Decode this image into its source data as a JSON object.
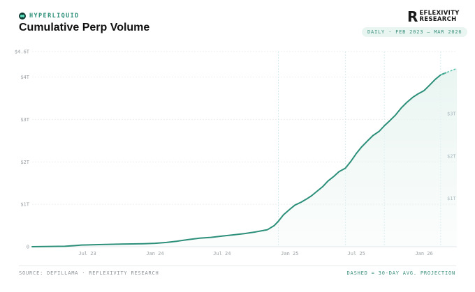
{
  "header": {
    "brand": "HYPERLIQUID",
    "title": "Cumulative Perp Volume",
    "badge": "DAILY · FEB 2023 – MAR 2026"
  },
  "logo": {
    "mark": "R",
    "line1": "EFLEXIVITY",
    "line2": "RESEARCH"
  },
  "footer": {
    "source": "SOURCE: DEFILLAMA · REFLEXIVITY RESEARCH",
    "note": "DASHED = 30-DAY AVG. PROJECTION"
  },
  "colors": {
    "line": "#2c8f79",
    "fill": "#e7f4f0",
    "projection": "#5fc4ae",
    "brand": "#2c8f79"
  },
  "chart_data": {
    "type": "area",
    "title": "Cumulative Perp Volume",
    "xlabel": "",
    "ylabel": "",
    "unit": "USD",
    "x_range": [
      "2023-02-01",
      "2026-03-31"
    ],
    "ylim": [
      0,
      4.6
    ],
    "y_ticks": [
      {
        "value": 0,
        "label": "0"
      },
      {
        "value": 1,
        "label": "$1T"
      },
      {
        "value": 2,
        "label": "$2T"
      },
      {
        "value": 3,
        "label": "$3T"
      },
      {
        "value": 4,
        "label": "$4T"
      },
      {
        "value": 4.6,
        "label": "$4.6T"
      }
    ],
    "x_ticks": [
      {
        "date": "2023-07-01",
        "label": "Jul 23"
      },
      {
        "date": "2024-01-01",
        "label": "Jan 24"
      },
      {
        "date": "2024-07-01",
        "label": "Jul 24"
      },
      {
        "date": "2025-01-01",
        "label": "Jan 25"
      },
      {
        "date": "2025-07-01",
        "label": "Jul 25"
      },
      {
        "date": "2026-01-01",
        "label": "Jan 26"
      }
    ],
    "inner_labels": [
      {
        "value": 3,
        "label": "$3T"
      },
      {
        "value": 2,
        "label": "$2T"
      },
      {
        "value": 1,
        "label": "$1T"
      }
    ],
    "vertical_markers": [
      "2024-12-01",
      "2025-06-01",
      "2025-09-15",
      "2026-02-15"
    ],
    "grid": true,
    "legend": "none",
    "series": [
      {
        "style": "solid",
        "points": [
          [
            "2023-02-01",
            0.0
          ],
          [
            "2023-05-01",
            0.01
          ],
          [
            "2023-06-01",
            0.03
          ],
          [
            "2023-06-15",
            0.04
          ],
          [
            "2023-08-01",
            0.05
          ],
          [
            "2023-10-01",
            0.06
          ],
          [
            "2023-12-01",
            0.07
          ],
          [
            "2024-01-01",
            0.08
          ],
          [
            "2024-02-01",
            0.1
          ],
          [
            "2024-03-01",
            0.13
          ],
          [
            "2024-04-01",
            0.17
          ],
          [
            "2024-05-01",
            0.2
          ],
          [
            "2024-06-01",
            0.22
          ],
          [
            "2024-07-01",
            0.25
          ],
          [
            "2024-08-01",
            0.28
          ],
          [
            "2024-09-01",
            0.31
          ],
          [
            "2024-10-01",
            0.35
          ],
          [
            "2024-11-01",
            0.4
          ],
          [
            "2024-11-20",
            0.5
          ],
          [
            "2024-12-01",
            0.6
          ],
          [
            "2024-12-15",
            0.75
          ],
          [
            "2025-01-01",
            0.88
          ],
          [
            "2025-01-15",
            0.98
          ],
          [
            "2025-02-01",
            1.05
          ],
          [
            "2025-02-15",
            1.12
          ],
          [
            "2025-03-01",
            1.2
          ],
          [
            "2025-03-15",
            1.3
          ],
          [
            "2025-04-01",
            1.42
          ],
          [
            "2025-04-15",
            1.55
          ],
          [
            "2025-05-01",
            1.66
          ],
          [
            "2025-05-15",
            1.77
          ],
          [
            "2025-06-01",
            1.85
          ],
          [
            "2025-06-15",
            2.0
          ],
          [
            "2025-07-01",
            2.2
          ],
          [
            "2025-07-15",
            2.35
          ],
          [
            "2025-08-01",
            2.5
          ],
          [
            "2025-08-15",
            2.62
          ],
          [
            "2025-09-01",
            2.72
          ],
          [
            "2025-09-15",
            2.85
          ],
          [
            "2025-10-01",
            2.98
          ],
          [
            "2025-10-15",
            3.1
          ],
          [
            "2025-11-01",
            3.28
          ],
          [
            "2025-11-15",
            3.4
          ],
          [
            "2025-12-01",
            3.52
          ],
          [
            "2025-12-15",
            3.6
          ],
          [
            "2026-01-01",
            3.68
          ],
          [
            "2026-01-15",
            3.8
          ],
          [
            "2026-02-01",
            3.95
          ],
          [
            "2026-02-15",
            4.05
          ],
          [
            "2026-03-01",
            4.1
          ]
        ]
      },
      {
        "style": "dashed",
        "points": [
          [
            "2026-02-15",
            4.05
          ],
          [
            "2026-03-01",
            4.1
          ],
          [
            "2026-03-31",
            4.2
          ]
        ]
      }
    ]
  }
}
